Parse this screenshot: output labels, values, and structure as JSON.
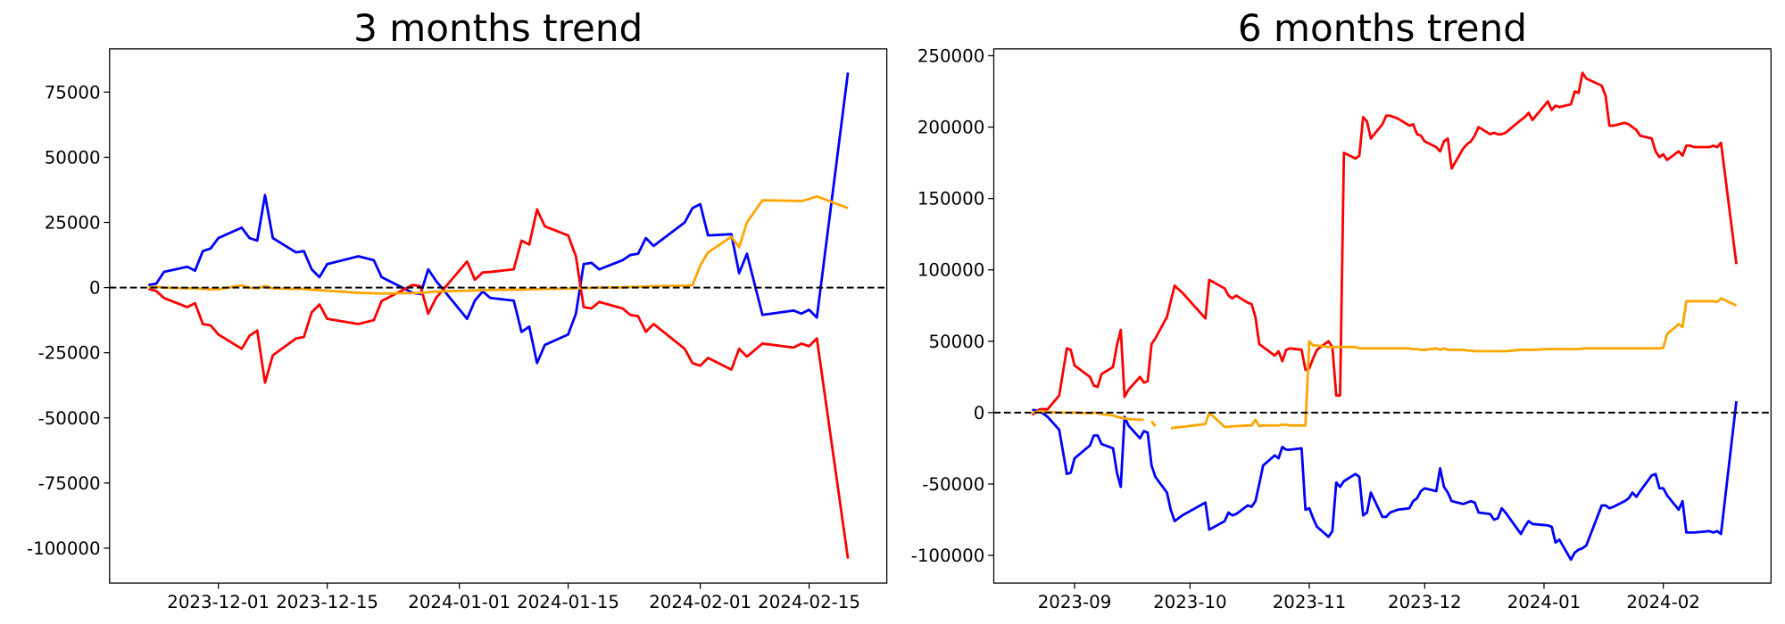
{
  "chart_data": [
    {
      "type": "line",
      "title": "3 months trend",
      "x": [
        "2023-11-22",
        "2023-11-23",
        "2023-11-24",
        "2023-11-27",
        "2023-11-28",
        "2023-11-29",
        "2023-11-30",
        "2023-12-01",
        "2023-12-04",
        "2023-12-05",
        "2023-12-06",
        "2023-12-07",
        "2023-12-08",
        "2023-12-11",
        "2023-12-12",
        "2023-12-13",
        "2023-12-14",
        "2023-12-15",
        "2023-12-19",
        "2023-12-21",
        "2023-12-22",
        "2023-12-26",
        "2023-12-27",
        "2023-12-28",
        "2023-12-29",
        "2024-01-02",
        "2024-01-03",
        "2024-01-04",
        "2024-01-05",
        "2024-01-08",
        "2024-01-09",
        "2024-01-10",
        "2024-01-11",
        "2024-01-12",
        "2024-01-15",
        "2024-01-16",
        "2024-01-17",
        "2024-01-18",
        "2024-01-19",
        "2024-01-22",
        "2024-01-23",
        "2024-01-24",
        "2024-01-25",
        "2024-01-26",
        "2024-01-30",
        "2024-01-31",
        "2024-02-01",
        "2024-02-02",
        "2024-02-05",
        "2024-02-06",
        "2024-02-07",
        "2024-02-09",
        "2024-02-13",
        "2024-02-14",
        "2024-02-15",
        "2024-02-16",
        "2024-02-20"
      ],
      "series": [
        {
          "color": "#0000ff",
          "values": [
            1000,
            1500,
            6000,
            8000,
            6500,
            14000,
            15000,
            19000,
            23000,
            19000,
            18000,
            35500,
            19000,
            13500,
            14000,
            7000,
            4000,
            9000,
            12000,
            10500,
            4000,
            -2000,
            -2500,
            7000,
            2600,
            -12000,
            -5000,
            -1500,
            -4000,
            -5000,
            -17000,
            -15000,
            -29000,
            -22000,
            -18000,
            -10000,
            9000,
            9500,
            7000,
            10500,
            12500,
            13000,
            19000,
            16000,
            25000,
            30500,
            32000,
            20000,
            20500,
            5500,
            13000,
            -10500,
            -8800,
            -10000,
            -8500,
            -11500,
            82500
          ]
        },
        {
          "color": "#ff0000",
          "values": [
            -500,
            -1300,
            -4000,
            -7500,
            -6000,
            -14000,
            -14500,
            -18000,
            -23500,
            -18500,
            -16500,
            -36500,
            -26000,
            -19500,
            -19000,
            -9500,
            -6500,
            -12000,
            -14000,
            -12500,
            -5200,
            1000,
            500,
            -10000,
            -4000,
            10000,
            3000,
            5800,
            6000,
            7000,
            18000,
            16500,
            30000,
            23500,
            20000,
            12000,
            -7500,
            -8000,
            -5500,
            -8000,
            -10500,
            -11000,
            -17000,
            -14000,
            -23500,
            -29000,
            -30000,
            -27000,
            -31500,
            -23500,
            -26500,
            -21500,
            -23000,
            -21500,
            -22500,
            -19500,
            -104000
          ]
        },
        {
          "color": "#ffa500",
          "values": [
            0,
            300,
            0,
            -300,
            -200,
            -500,
            -700,
            -600,
            800,
            0,
            -300,
            600,
            -300,
            -500,
            -500,
            -800,
            -1000,
            -1200,
            -2000,
            -2200,
            -2300,
            -2100,
            -2000,
            -1800,
            -1500,
            -1200,
            -1100,
            -1000,
            -900,
            -800,
            -800,
            -700,
            -600,
            -500,
            -400,
            -300,
            -200,
            -100,
            0,
            100,
            200,
            300,
            400,
            500,
            700,
            900,
            8500,
            13500,
            19500,
            15500,
            25000,
            33500,
            33300,
            33200,
            34000,
            35000,
            30500
          ]
        }
      ],
      "xlim": [
        "2023-11-17",
        "2024-02-25"
      ],
      "xticks": [
        "2023-12-01",
        "2023-12-15",
        "2024-01-01",
        "2024-01-15",
        "2024-02-01",
        "2024-02-15"
      ],
      "ylim": [
        -113400,
        91600
      ],
      "yticks": [
        -100000,
        -75000,
        -50000,
        -25000,
        0,
        25000,
        50000,
        75000
      ],
      "hline": 0
    },
    {
      "type": "line",
      "title": "6 months trend",
      "x": [
        "2023-08-21",
        "2023-08-23",
        "2023-08-25",
        "2023-08-28",
        "2023-08-30",
        "2023-08-31",
        "2023-09-01",
        "2023-09-05",
        "2023-09-06",
        "2023-09-07",
        "2023-09-08",
        "2023-09-11",
        "2023-09-12",
        "2023-09-13",
        "2023-09-14",
        "2023-09-15",
        "2023-09-18",
        "2023-09-19",
        "2023-09-20",
        "2023-09-21",
        "2023-09-22",
        "2023-09-25",
        "2023-09-26",
        "2023-09-27",
        "2023-09-29",
        "2023-10-05",
        "2023-10-06",
        "2023-10-10",
        "2023-10-11",
        "2023-10-12",
        "2023-10-13",
        "2023-10-16",
        "2023-10-17",
        "2023-10-18",
        "2023-10-19",
        "2023-10-20",
        "2023-10-23",
        "2023-10-24",
        "2023-10-25",
        "2023-10-26",
        "2023-10-27",
        "2023-10-30",
        "2023-10-31",
        "2023-11-01",
        "2023-11-02",
        "2023-11-03",
        "2023-11-06",
        "2023-11-07",
        "2023-11-08",
        "2023-11-09",
        "2023-11-10",
        "2023-11-13",
        "2023-11-14",
        "2023-11-15",
        "2023-11-16",
        "2023-11-17",
        "2023-11-20",
        "2023-11-21",
        "2023-11-22",
        "2023-11-24",
        "2023-11-27",
        "2023-11-28",
        "2023-11-29",
        "2023-11-30",
        "2023-12-01",
        "2023-12-04",
        "2023-12-05",
        "2023-12-06",
        "2023-12-07",
        "2023-12-08",
        "2023-12-11",
        "2023-12-12",
        "2023-12-13",
        "2023-12-14",
        "2023-12-15",
        "2023-12-18",
        "2023-12-19",
        "2023-12-20",
        "2023-12-21",
        "2023-12-22",
        "2023-12-26",
        "2023-12-27",
        "2023-12-28",
        "2023-12-29",
        "2024-01-02",
        "2024-01-03",
        "2024-01-04",
        "2024-01-05",
        "2024-01-08",
        "2024-01-09",
        "2024-01-10",
        "2024-01-11",
        "2024-01-12",
        "2024-01-16",
        "2024-01-17",
        "2024-01-18",
        "2024-01-19",
        "2024-01-22",
        "2024-01-23",
        "2024-01-24",
        "2024-01-25",
        "2024-01-26",
        "2024-01-29",
        "2024-01-30",
        "2024-01-31",
        "2024-02-01",
        "2024-02-02",
        "2024-02-05",
        "2024-02-06",
        "2024-02-07",
        "2024-02-08",
        "2024-02-09",
        "2024-02-13",
        "2024-02-14",
        "2024-02-15",
        "2024-02-16",
        "2024-02-20"
      ],
      "series": [
        {
          "color": "#0000ff",
          "values": [
            2000,
            1000,
            -3000,
            -12000,
            -43000,
            -42000,
            -32000,
            -23000,
            -16000,
            -16000,
            -22000,
            -25000,
            -42000,
            -52000,
            -3000,
            -9000,
            -18000,
            -13000,
            -14000,
            -37000,
            -45000,
            -56000,
            -68000,
            -76000,
            -72000,
            -63000,
            -82000,
            -76000,
            -70000,
            -72000,
            -71000,
            -65000,
            -66000,
            -62000,
            -50000,
            -37000,
            -30000,
            -32000,
            -24000,
            -26000,
            -26000,
            -25000,
            -68000,
            -67000,
            -74000,
            -80000,
            -87000,
            -83000,
            -49000,
            -52000,
            -48000,
            -43000,
            -45000,
            -72000,
            -70000,
            -56000,
            -73000,
            -73000,
            -70000,
            -68000,
            -67000,
            -62000,
            -60000,
            -55000,
            -53000,
            -55000,
            -39000,
            -52000,
            -56000,
            -62000,
            -64000,
            -63000,
            -62000,
            -63000,
            -70000,
            -71000,
            -75000,
            -74000,
            -67000,
            -70000,
            -85000,
            -80000,
            -76000,
            -78000,
            -79000,
            -80000,
            -91000,
            -89000,
            -103000,
            -98000,
            -96000,
            -95000,
            -93000,
            -65000,
            -65000,
            -67000,
            -66000,
            -62000,
            -60000,
            -56000,
            -59000,
            -55000,
            -44000,
            -43000,
            -53000,
            -53000,
            -58000,
            -68000,
            -62000,
            -84000,
            -84000,
            -84000,
            -83000,
            -84000,
            -83000,
            -85000,
            8000
          ]
        },
        {
          "color": "#ff0000",
          "values": [
            -1500,
            2400,
            2400,
            12000,
            45000,
            44000,
            33000,
            25000,
            19000,
            18000,
            27000,
            32000,
            47000,
            58000,
            11000,
            16000,
            25000,
            21000,
            22000,
            48000,
            52000,
            67000,
            78000,
            89000,
            84000,
            66000,
            93000,
            87000,
            82000,
            80000,
            82000,
            77000,
            76000,
            67000,
            48000,
            46000,
            40000,
            43000,
            36000,
            44000,
            45000,
            44000,
            30000,
            31000,
            38000,
            44000,
            50000,
            46000,
            12000,
            12000,
            182000,
            178000,
            180000,
            207000,
            204000,
            192000,
            202000,
            208000,
            208000,
            206000,
            201000,
            202000,
            195000,
            194000,
            190000,
            186000,
            183000,
            190000,
            192000,
            171000,
            185000,
            188000,
            190000,
            194000,
            200000,
            195000,
            196000,
            195000,
            195000,
            196000,
            205000,
            207000,
            210000,
            205000,
            218000,
            212000,
            215000,
            214000,
            216000,
            225000,
            224000,
            238000,
            234000,
            229000,
            222000,
            201000,
            201000,
            203000,
            202000,
            200000,
            198000,
            194000,
            192000,
            183000,
            179000,
            181000,
            177000,
            183000,
            180000,
            187000,
            187000,
            186000,
            186000,
            187000,
            186000,
            189000,
            104000
          ]
        },
        {
          "color": "#ffa500",
          "values": [
            0,
            1000,
            500,
            0,
            0,
            0,
            0,
            -500,
            0,
            -500,
            -1000,
            -2000,
            -3000,
            -3500,
            -4000,
            -4500,
            -5000,
            -5000,
            null,
            -6000,
            -9500,
            null,
            -11000,
            -10500,
            -10000,
            -8000,
            0,
            -10000,
            -10000,
            -9500,
            -9500,
            -9000,
            -9000,
            -5000,
            -9500,
            -9000,
            -9000,
            -9000,
            -8500,
            -8500,
            -9000,
            -9000,
            -9000,
            50000,
            47000,
            47000,
            46000,
            46000,
            46000,
            46000,
            46000,
            46000,
            45000,
            45000,
            45000,
            45000,
            45000,
            45000,
            45000,
            45000,
            45000,
            44500,
            44500,
            44000,
            44000,
            45000,
            44000,
            45000,
            44000,
            44000,
            44000,
            43500,
            43500,
            43000,
            43000,
            43000,
            43000,
            43000,
            43000,
            43000,
            44000,
            44000,
            44000,
            44000,
            44500,
            44500,
            44500,
            44500,
            44500,
            44500,
            44500,
            45000,
            45000,
            45000,
            45000,
            45000,
            45000,
            45000,
            45000,
            45000,
            45000,
            45000,
            45000,
            45000,
            45000,
            45500,
            55000,
            62000,
            60000,
            78000,
            78000,
            78000,
            78000,
            78000,
            77500,
            80000,
            75000
          ]
        }
      ],
      "xlim": [
        "2023-08-11",
        "2024-02-29"
      ],
      "xticks": [
        {
          "value": "2023-09-01",
          "label": "2023-09"
        },
        {
          "value": "2023-10-01",
          "label": "2023-10"
        },
        {
          "value": "2023-11-01",
          "label": "2023-11"
        },
        {
          "value": "2023-12-01",
          "label": "2023-12"
        },
        {
          "value": "2024-01-01",
          "label": "2024-01"
        },
        {
          "value": "2024-02-01",
          "label": "2024-02"
        }
      ],
      "ylim": [
        -119400,
        254800
      ],
      "yticks": [
        -100000,
        -50000,
        0,
        50000,
        100000,
        150000,
        200000,
        250000
      ],
      "hline": 0
    }
  ]
}
